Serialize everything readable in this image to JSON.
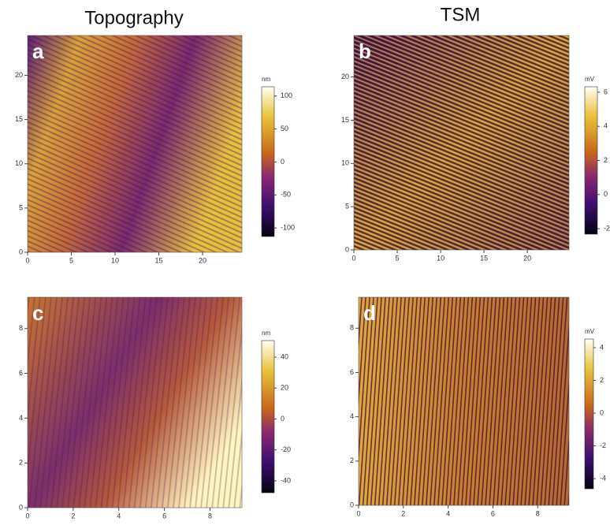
{
  "column_titles": [
    "Topography",
    "TSM"
  ],
  "chart_data": [
    {
      "type": "image",
      "label": "a",
      "xlim": [
        0,
        24.5
      ],
      "ylim": [
        0,
        24.5
      ],
      "xticks": [
        0,
        5,
        10,
        15,
        20
      ],
      "yticks": [
        0,
        5,
        10,
        15,
        20
      ],
      "colorbar_label": "nm",
      "clim": [
        -113,
        114
      ],
      "cticks": [
        -100,
        -50,
        0,
        50,
        100
      ]
    },
    {
      "type": "image",
      "label": "b",
      "xlim": [
        0,
        24.8
      ],
      "ylim": [
        0,
        24.8
      ],
      "xticks": [
        0,
        5,
        10,
        15,
        20
      ],
      "yticks": [
        0,
        5,
        10,
        15,
        20
      ],
      "colorbar_label": "mV",
      "clim": [
        -2.32,
        6.32
      ],
      "cticks": [
        -2,
        0,
        2,
        4,
        6
      ]
    },
    {
      "type": "image",
      "label": "c",
      "xlim": [
        0,
        9.4
      ],
      "ylim": [
        0,
        9.4
      ],
      "xticks": [
        0,
        2,
        4,
        6,
        8
      ],
      "yticks": [
        0,
        2,
        4,
        6,
        8
      ],
      "colorbar_label": "nm",
      "clim": [
        -47.7,
        50.7
      ],
      "cticks": [
        -40,
        -20,
        0,
        20,
        40
      ]
    },
    {
      "type": "image",
      "label": "d",
      "xlim": [
        0,
        9.4
      ],
      "ylim": [
        0,
        9.4
      ],
      "xticks": [
        0,
        2,
        4,
        6,
        8
      ],
      "yticks": [
        0,
        2,
        4,
        6,
        8
      ],
      "colorbar_label": "mV",
      "clim": [
        -4.62,
        4.53
      ],
      "cticks": [
        -4,
        -2,
        0,
        2,
        4
      ]
    }
  ]
}
